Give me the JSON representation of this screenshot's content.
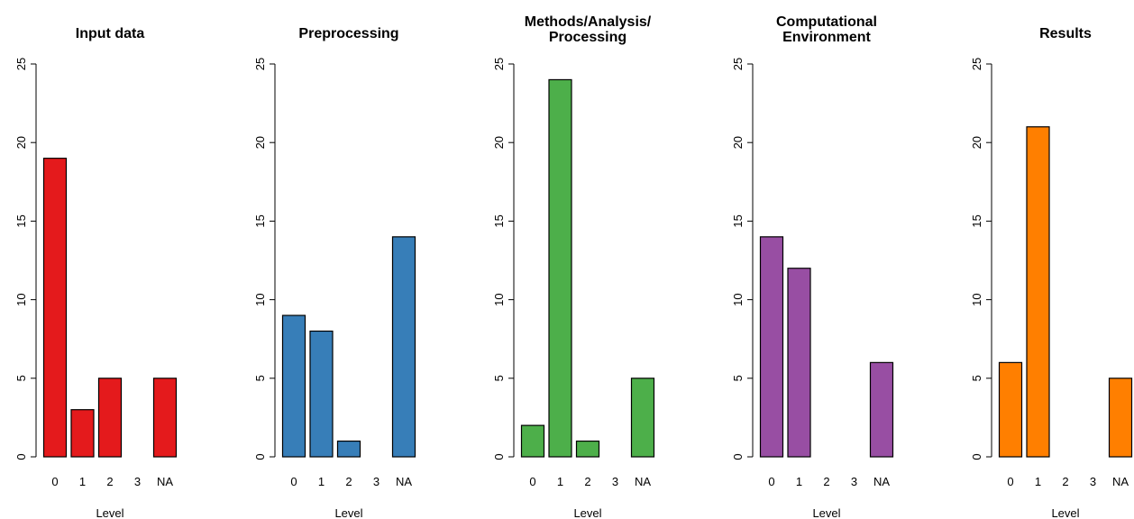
{
  "chart_data": [
    {
      "type": "bar",
      "title": "Input data",
      "xlabel": "Level",
      "ylabel": "",
      "categories": [
        "0",
        "1",
        "2",
        "3",
        "NA"
      ],
      "values": [
        19,
        3,
        5,
        0,
        5
      ],
      "ylim": [
        0,
        25
      ],
      "yticks": [
        "0",
        "5",
        "10",
        "15",
        "20",
        "25"
      ],
      "color": "#E41A1C"
    },
    {
      "type": "bar",
      "title": "Preprocessing",
      "xlabel": "Level",
      "ylabel": "",
      "categories": [
        "0",
        "1",
        "2",
        "3",
        "NA"
      ],
      "values": [
        9,
        8,
        1,
        0,
        14
      ],
      "ylim": [
        0,
        25
      ],
      "yticks": [
        "0",
        "5",
        "10",
        "15",
        "20",
        "25"
      ],
      "color": "#377EB8"
    },
    {
      "type": "bar",
      "title": "Methods/Analysis/ Processing",
      "title_lines": [
        "Methods/Analysis/",
        "Processing"
      ],
      "xlabel": "Level",
      "ylabel": "",
      "categories": [
        "0",
        "1",
        "2",
        "3",
        "NA"
      ],
      "values": [
        2,
        24,
        1,
        0,
        5
      ],
      "ylim": [
        0,
        25
      ],
      "yticks": [
        "0",
        "5",
        "10",
        "15",
        "20",
        "25"
      ],
      "color": "#4DAF4A"
    },
    {
      "type": "bar",
      "title": "Computational Environment",
      "title_lines": [
        "Computational",
        "Environment"
      ],
      "xlabel": "Level",
      "ylabel": "",
      "categories": [
        "0",
        "1",
        "2",
        "3",
        "NA"
      ],
      "values": [
        14,
        12,
        0,
        0,
        6
      ],
      "ylim": [
        0,
        25
      ],
      "yticks": [
        "0",
        "5",
        "10",
        "15",
        "20",
        "25"
      ],
      "color": "#984EA3"
    },
    {
      "type": "bar",
      "title": "Results",
      "xlabel": "Level",
      "ylabel": "",
      "categories": [
        "0",
        "1",
        "2",
        "3",
        "NA"
      ],
      "values": [
        6,
        21,
        0,
        0,
        5
      ],
      "ylim": [
        0,
        25
      ],
      "yticks": [
        "0",
        "5",
        "10",
        "15",
        "20",
        "25"
      ],
      "color": "#FF7F00"
    }
  ]
}
